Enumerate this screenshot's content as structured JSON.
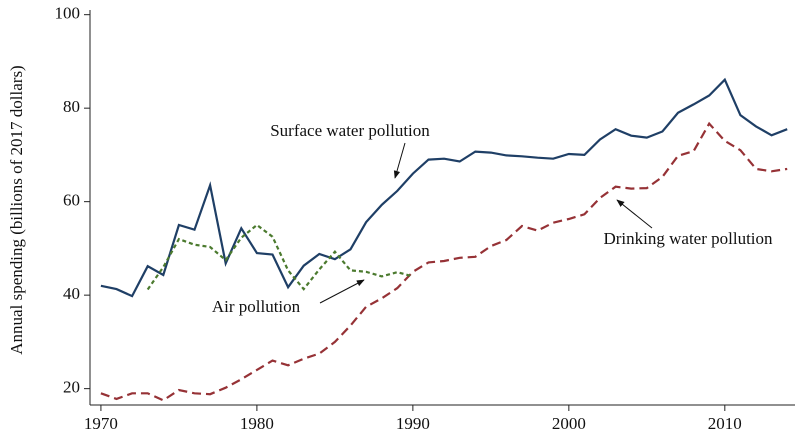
{
  "chart_data": {
    "type": "line",
    "y_label": "Annual spending (billions of 2017 dollars)",
    "x": [
      1970,
      1971,
      1972,
      1973,
      1974,
      1975,
      1976,
      1977,
      1978,
      1979,
      1980,
      1981,
      1982,
      1983,
      1984,
      1985,
      1986,
      1987,
      1988,
      1989,
      1990,
      1991,
      1992,
      1993,
      1994,
      1995,
      1996,
      1997,
      1998,
      1999,
      2000,
      2001,
      2002,
      2003,
      2004,
      2005,
      2006,
      2007,
      2008,
      2009,
      2010,
      2011,
      2012,
      2013,
      2014
    ],
    "series": [
      {
        "name": "Surface water pollution",
        "color": "#1f3f66",
        "style": "solid",
        "values": [
          42,
          41.3,
          39.8,
          46.2,
          44.3,
          55,
          54,
          63.5,
          46.8,
          54.3,
          49,
          48.7,
          41.7,
          46.3,
          48.8,
          47.7,
          49.8,
          55.6,
          59.3,
          62.3,
          66,
          69,
          69.2,
          68.6,
          70.7,
          70.5,
          69.9,
          69.7,
          69.4,
          69.2,
          70.2,
          70,
          73.3,
          75.5,
          74.1,
          73.7,
          75,
          79,
          80.8,
          82.7,
          86.1,
          78.5,
          76.1,
          74.2,
          75.5
        ]
      },
      {
        "name": "Drinking water pollution",
        "color": "#963236",
        "style": "dashed",
        "values": [
          19,
          17.8,
          19,
          19,
          17.5,
          19.7,
          19,
          18.8,
          20.2,
          22,
          24,
          26,
          25,
          26.4,
          27.5,
          30,
          33.5,
          37.5,
          39.3,
          41.5,
          45,
          47,
          47.3,
          48,
          48.2,
          50.5,
          51.8,
          54.8,
          53.8,
          55.5,
          56.3,
          57.3,
          60.8,
          63.2,
          62.8,
          62.9,
          65.3,
          69.8,
          70.8,
          76.7,
          73,
          71,
          67,
          66.5,
          67
        ]
      },
      {
        "name": "Air pollution",
        "color": "#4b7a2e",
        "style": "dotted",
        "values": [
          null,
          null,
          null,
          41.2,
          46,
          52,
          50.8,
          50.3,
          47.5,
          52.3,
          55,
          52.5,
          45.3,
          41.3,
          45.5,
          49.3,
          45.3,
          45,
          44,
          44.9,
          44,
          null,
          null,
          null,
          null,
          null,
          null,
          null,
          null,
          null,
          null,
          null,
          null,
          null,
          null,
          null,
          null,
          null,
          null,
          null,
          null,
          null,
          null,
          null,
          null
        ]
      }
    ],
    "xlim": [
      1969.3,
      2014.5
    ],
    "ylim": [
      16.5,
      101
    ],
    "xticks": [
      1970,
      1980,
      1990,
      2000,
      2010
    ],
    "yticks": [
      20,
      40,
      60,
      80,
      100
    ],
    "grid": false
  }
}
